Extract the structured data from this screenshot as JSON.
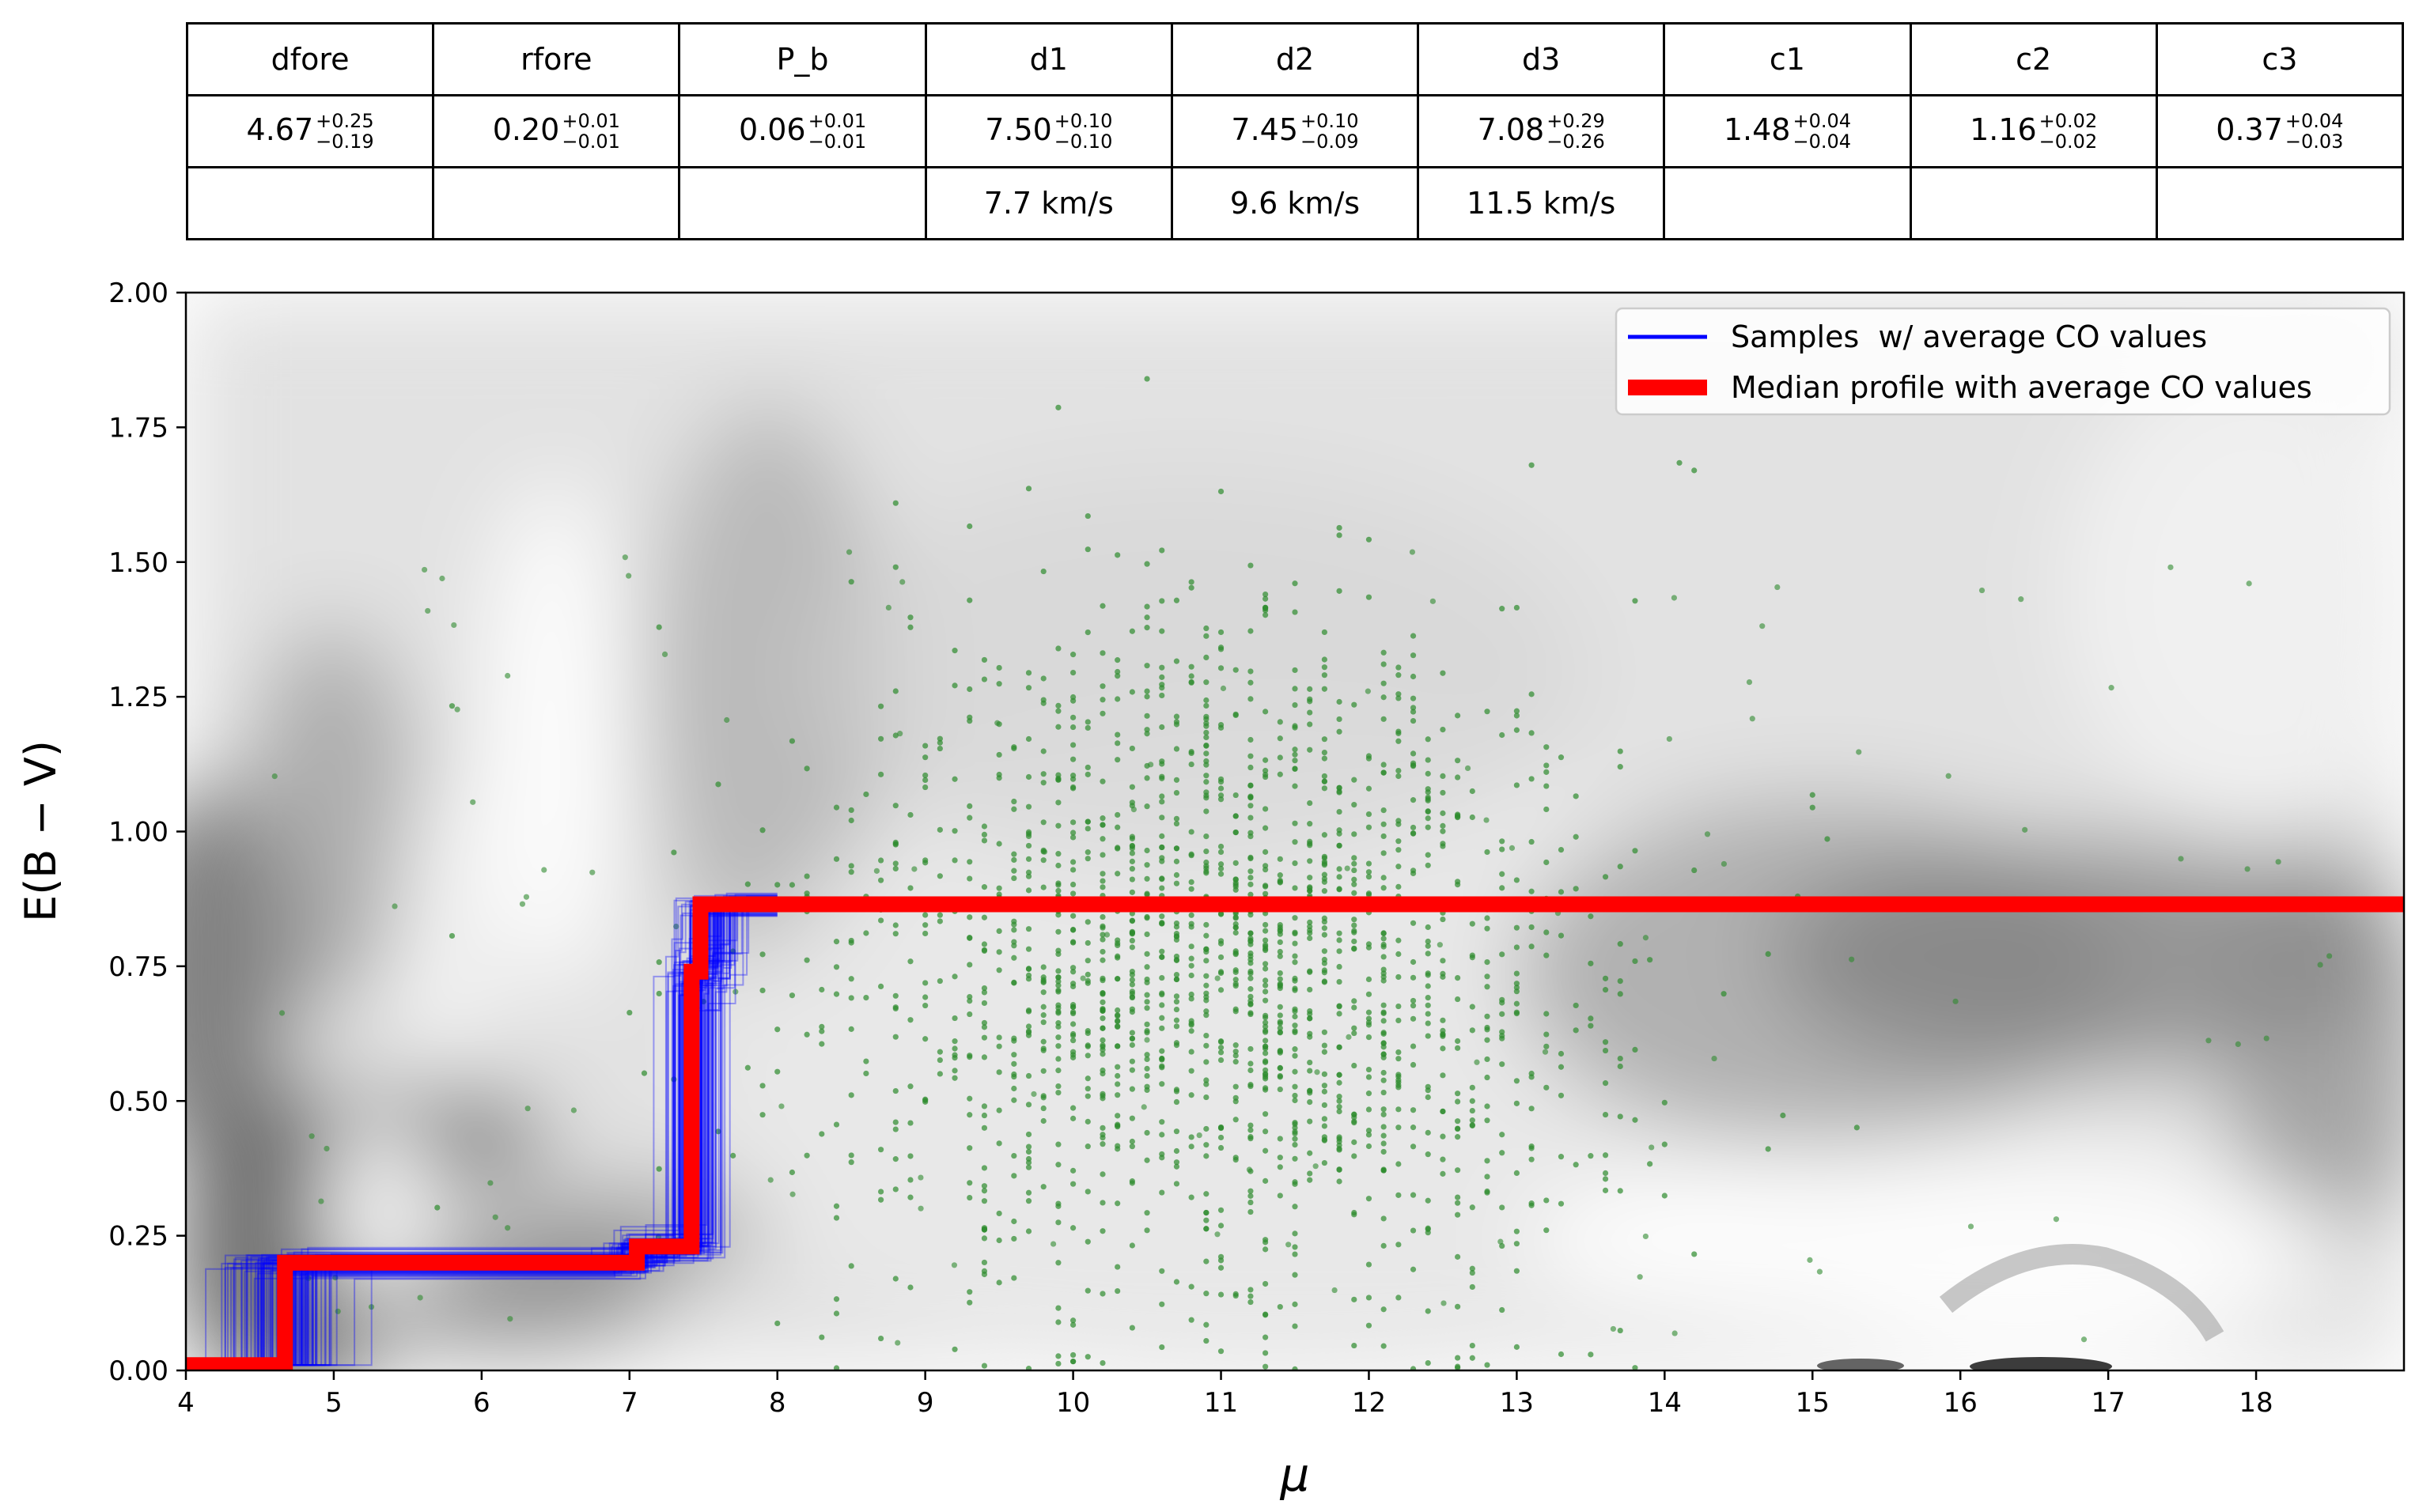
{
  "table": {
    "headers": [
      "dfore",
      "rfore",
      "P_b",
      "d1",
      "d2",
      "d3",
      "c1",
      "c2",
      "c3"
    ],
    "values": [
      {
        "main": "4.67",
        "plus": "+0.25",
        "minus": "−0.19"
      },
      {
        "main": "0.20",
        "plus": "+0.01",
        "minus": "−0.01"
      },
      {
        "main": "0.06",
        "plus": "+0.01",
        "minus": "−0.01"
      },
      {
        "main": "7.50",
        "plus": "+0.10",
        "minus": "−0.10"
      },
      {
        "main": "7.45",
        "plus": "+0.10",
        "minus": "−0.09"
      },
      {
        "main": "7.08",
        "plus": "+0.29",
        "minus": "−0.26"
      },
      {
        "main": "1.48",
        "plus": "+0.04",
        "minus": "−0.04"
      },
      {
        "main": "1.16",
        "plus": "+0.02",
        "minus": "−0.02"
      },
      {
        "main": "0.37",
        "plus": "+0.04",
        "minus": "−0.03"
      }
    ],
    "velocities": [
      "",
      "",
      "",
      "7.7 km/s",
      "9.6 km/s",
      "11.5 km/s",
      "",
      "",
      ""
    ]
  },
  "chart_data": {
    "type": "line",
    "xlabel": "μ",
    "ylabel": "E(B − V)",
    "xlim": [
      4,
      19
    ],
    "ylim": [
      0,
      2
    ],
    "xticks": [
      4,
      5,
      6,
      7,
      8,
      9,
      10,
      11,
      12,
      13,
      14,
      15,
      16,
      17,
      18
    ],
    "xtick_labels": [
      "4",
      "5",
      "6",
      "7",
      "8",
      "9",
      "10",
      "11",
      "12",
      "13",
      "14",
      "15",
      "16",
      "17",
      "18"
    ],
    "yticks": [
      0,
      0.25,
      0.5,
      0.75,
      1.0,
      1.25,
      1.5,
      1.75,
      2.0
    ],
    "ytick_labels": [
      "0.00",
      "0.25",
      "0.50",
      "0.75",
      "1.00",
      "1.25",
      "1.50",
      "1.75",
      "2.00"
    ],
    "legend_position": "top-right",
    "series": [
      {
        "name": "Samples  w/ average CO values",
        "color": "#0000ff",
        "step_profile_x": [
          4.0,
          4.67,
          4.67,
          7.05,
          7.05,
          7.45,
          7.45,
          7.5,
          7.5,
          19.0
        ],
        "step_profile_y": [
          0.01,
          0.01,
          0.2,
          0.2,
          0.23,
          0.23,
          0.74,
          0.74,
          0.865,
          0.865
        ]
      },
      {
        "name": "Median profile with average CO values",
        "color": "#ff0000",
        "x": [
          4.0,
          4.67,
          4.67,
          7.05,
          7.05,
          7.42,
          7.42,
          7.48,
          7.48,
          19.0
        ],
        "y": [
          0.01,
          0.01,
          0.2,
          0.2,
          0.23,
          0.23,
          0.74,
          0.74,
          0.865,
          0.865
        ]
      }
    ],
    "stars": {
      "color": "#2e8b2e",
      "count_estimate": 1800,
      "x_center": 11.0,
      "x_spread": 1.3,
      "y_center": 0.75,
      "y_spread": 0.33
    },
    "background": "grayscale probability density"
  }
}
